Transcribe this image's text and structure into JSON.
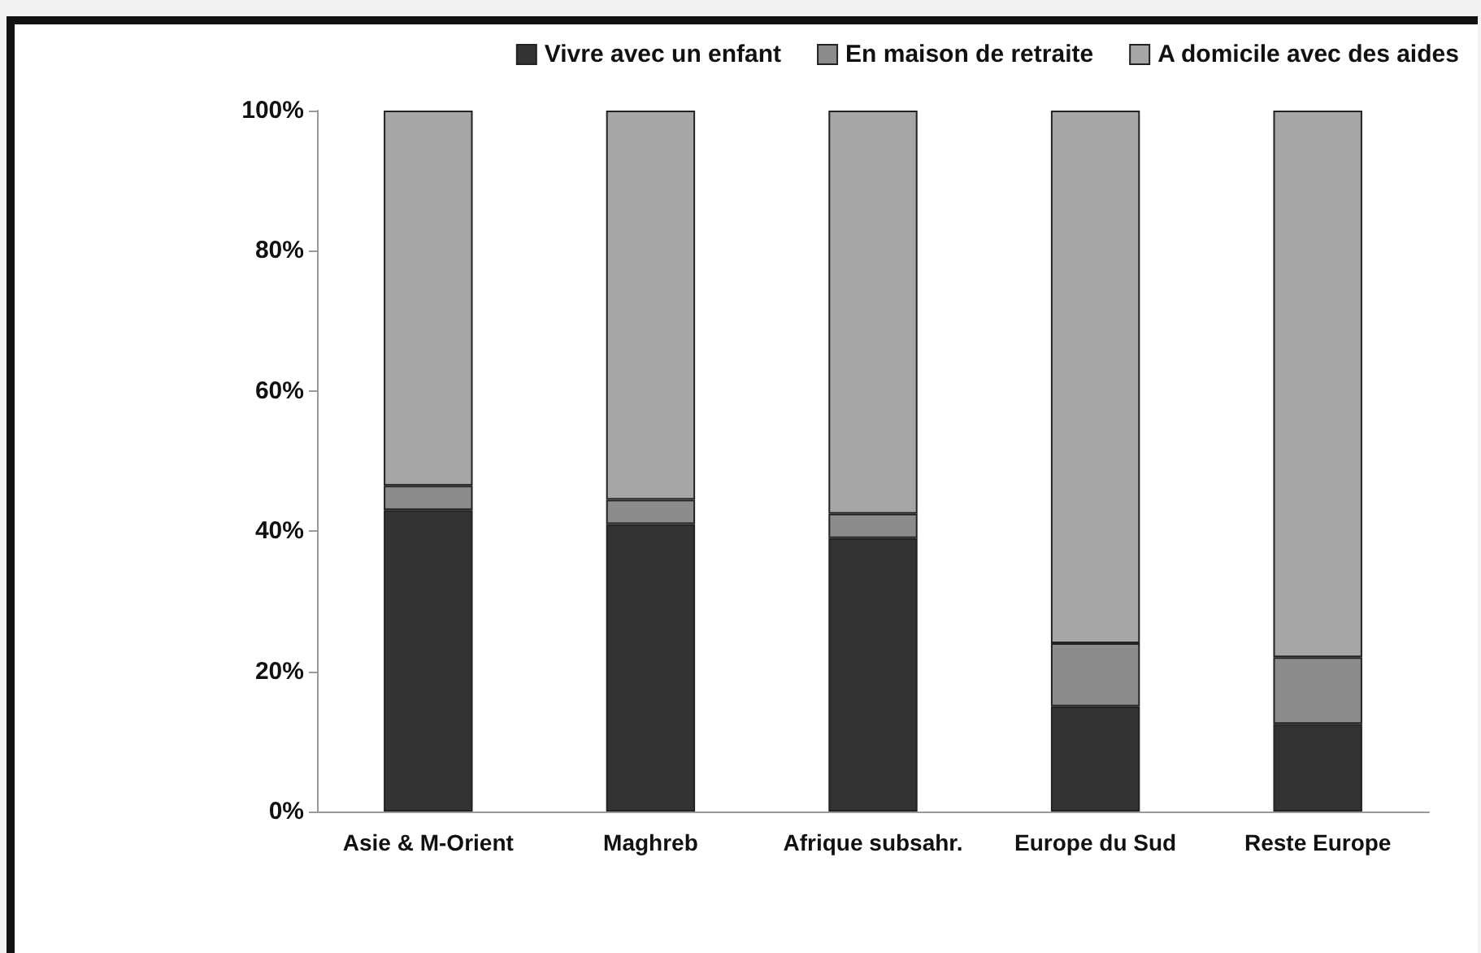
{
  "chart_data": {
    "type": "bar",
    "stacked": true,
    "categories": [
      "Asie & M-Orient",
      "Maghreb",
      "Afrique subsahr.",
      "Europe du Sud",
      "Reste Europe"
    ],
    "series": [
      {
        "name": "Vivre avec un enfant",
        "color": "#333333",
        "values": [
          43,
          41,
          39,
          15,
          12.5
        ]
      },
      {
        "name": "En maison de retraite",
        "color": "#8c8c8c",
        "values": [
          3.5,
          3.5,
          3.5,
          9,
          9.5
        ]
      },
      {
        "name": "A domicile avec des aides",
        "color": "#a6a6a6",
        "values": [
          53.5,
          55.5,
          57.5,
          76,
          78
        ]
      }
    ],
    "ylim": [
      0,
      100
    ],
    "yticks": [
      {
        "value": 0,
        "label": "0%"
      },
      {
        "value": 20,
        "label": "20%"
      },
      {
        "value": 40,
        "label": "40%"
      },
      {
        "value": 60,
        "label": "60%"
      },
      {
        "value": 80,
        "label": "80%"
      },
      {
        "value": 100,
        "label": "100%"
      }
    ],
    "grid": false,
    "legend": "top right"
  }
}
